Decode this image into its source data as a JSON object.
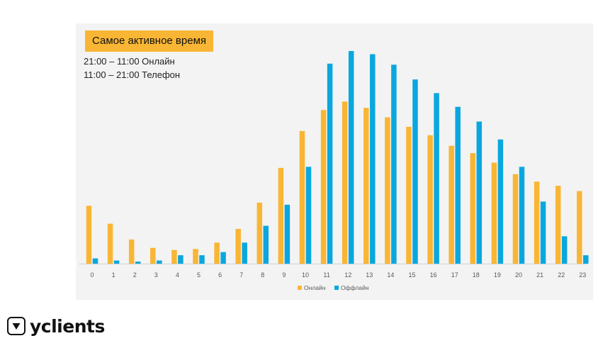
{
  "chart_data": {
    "type": "bar",
    "title": "Самое активное время",
    "notes": [
      "21:00 – 11:00 Онлайн",
      "11:00 – 21:00 Телефон"
    ],
    "categories": [
      "0",
      "1",
      "2",
      "3",
      "4",
      "5",
      "6",
      "7",
      "8",
      "9",
      "10",
      "11",
      "12",
      "13",
      "14",
      "15",
      "16",
      "17",
      "18",
      "19",
      "20",
      "21",
      "22",
      "23"
    ],
    "series": [
      {
        "name": "Онлайн",
        "color": "#f9b634",
        "values": [
          27.5,
          19,
          11.5,
          7.5,
          6.5,
          7,
          10,
          16.5,
          29,
          45.5,
          63,
          73,
          77,
          74,
          69.5,
          65,
          61,
          56,
          52.5,
          48,
          42.5,
          39,
          37,
          34.5
        ]
      },
      {
        "name": "Оффлайн",
        "color": "#0aa7df",
        "values": [
          2.5,
          1.5,
          1,
          1.5,
          4,
          4,
          5.5,
          10,
          18,
          28,
          46,
          95,
          101,
          99.5,
          94.5,
          87.5,
          81,
          74.5,
          67.5,
          59,
          46,
          29.5,
          13,
          4
        ]
      }
    ],
    "ylim": [
      0,
      101
    ],
    "grid": false,
    "legend": "bottom"
  },
  "brand": {
    "name": "yclients",
    "icon": "check-mark-icon"
  }
}
